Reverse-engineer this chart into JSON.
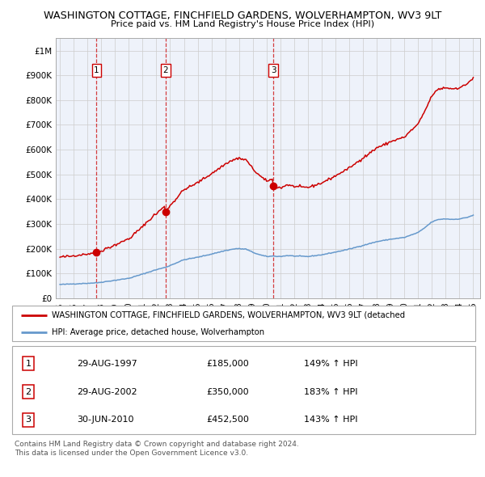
{
  "title1": "WASHINGTON COTTAGE, FINCHFIELD GARDENS, WOLVERHAMPTON, WV3 9LT",
  "title2": "Price paid vs. HM Land Registry's House Price Index (HPI)",
  "ylim": [
    0,
    1050000
  ],
  "yticks": [
    0,
    100000,
    200000,
    300000,
    400000,
    500000,
    600000,
    700000,
    800000,
    900000,
    1000000
  ],
  "ytick_labels": [
    "£0",
    "£100K",
    "£200K",
    "£300K",
    "£400K",
    "£500K",
    "£600K",
    "£700K",
    "£800K",
    "£900K",
    "£1M"
  ],
  "x_start_year": 1995,
  "x_end_year": 2025,
  "sale_dates": [
    "1997-08-29",
    "2002-08-29",
    "2010-06-30"
  ],
  "sale_prices": [
    185000,
    350000,
    452500
  ],
  "sale_labels": [
    "1",
    "2",
    "3"
  ],
  "sale_pct": [
    "149% ↑ HPI",
    "183% ↑ HPI",
    "143% ↑ HPI"
  ],
  "sale_date_str": [
    "29-AUG-1997",
    "29-AUG-2002",
    "30-JUN-2010"
  ],
  "sale_prices_str": [
    "£185,000",
    "£350,000",
    "£452,500"
  ],
  "red_line_color": "#cc0000",
  "blue_line_color": "#6699cc",
  "background_color": "#eef2fa",
  "grid_color": "#cccccc",
  "legend_label_red": "WASHINGTON COTTAGE, FINCHFIELD GARDENS, WOLVERHAMPTON, WV3 9LT (detached",
  "legend_label_blue": "HPI: Average price, detached house, Wolverhampton",
  "footer1": "Contains HM Land Registry data © Crown copyright and database right 2024.",
  "footer2": "This data is licensed under the Open Government Licence v3.0."
}
